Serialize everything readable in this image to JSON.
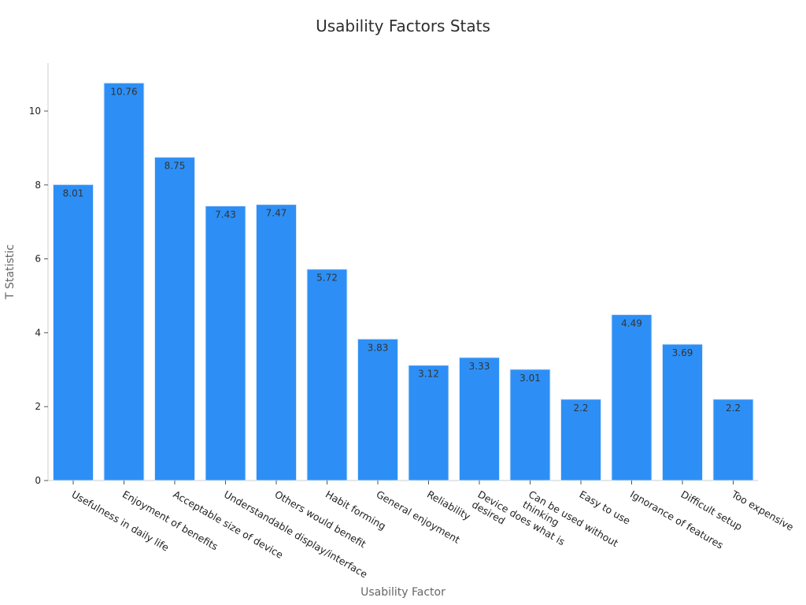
{
  "chart_data": {
    "type": "bar",
    "title": "Usability Factors Stats",
    "xlabel": "Usability Factor",
    "ylabel": "T Statistic",
    "categories": [
      [
        "Usefulness in daily life"
      ],
      [
        "Enjoyment of benefits"
      ],
      [
        "Acceptable size of device"
      ],
      [
        "Understandable display/interface"
      ],
      [
        "Others would benefit"
      ],
      [
        "Habit forming"
      ],
      [
        "General enjoyment"
      ],
      [
        "Reliability"
      ],
      [
        "Device does what is",
        "desired"
      ],
      [
        "Can be used without",
        "thinking"
      ],
      [
        "Easy to use"
      ],
      [
        "Ignorance of features"
      ],
      [
        "Difficult setup"
      ],
      [
        "Too expensive"
      ]
    ],
    "values": [
      8.01,
      10.76,
      8.75,
      7.43,
      7.47,
      5.72,
      3.83,
      3.12,
      3.33,
      3.01,
      2.2,
      4.49,
      3.69,
      2.2
    ],
    "value_labels": [
      "8.01",
      "10.76",
      "8.75",
      "7.43",
      "7.47",
      "5.72",
      "3.83",
      "3.12",
      "3.33",
      "3.01",
      "2.2",
      "4.49",
      "3.69",
      "2.2"
    ],
    "yticks": [
      0,
      2,
      4,
      6,
      8,
      10
    ],
    "ylim": [
      0,
      11.3
    ],
    "grid": false,
    "legend": "none",
    "colors": {
      "bar": "#2d8ff5",
      "bar_edge": "#d9e8fb"
    }
  }
}
